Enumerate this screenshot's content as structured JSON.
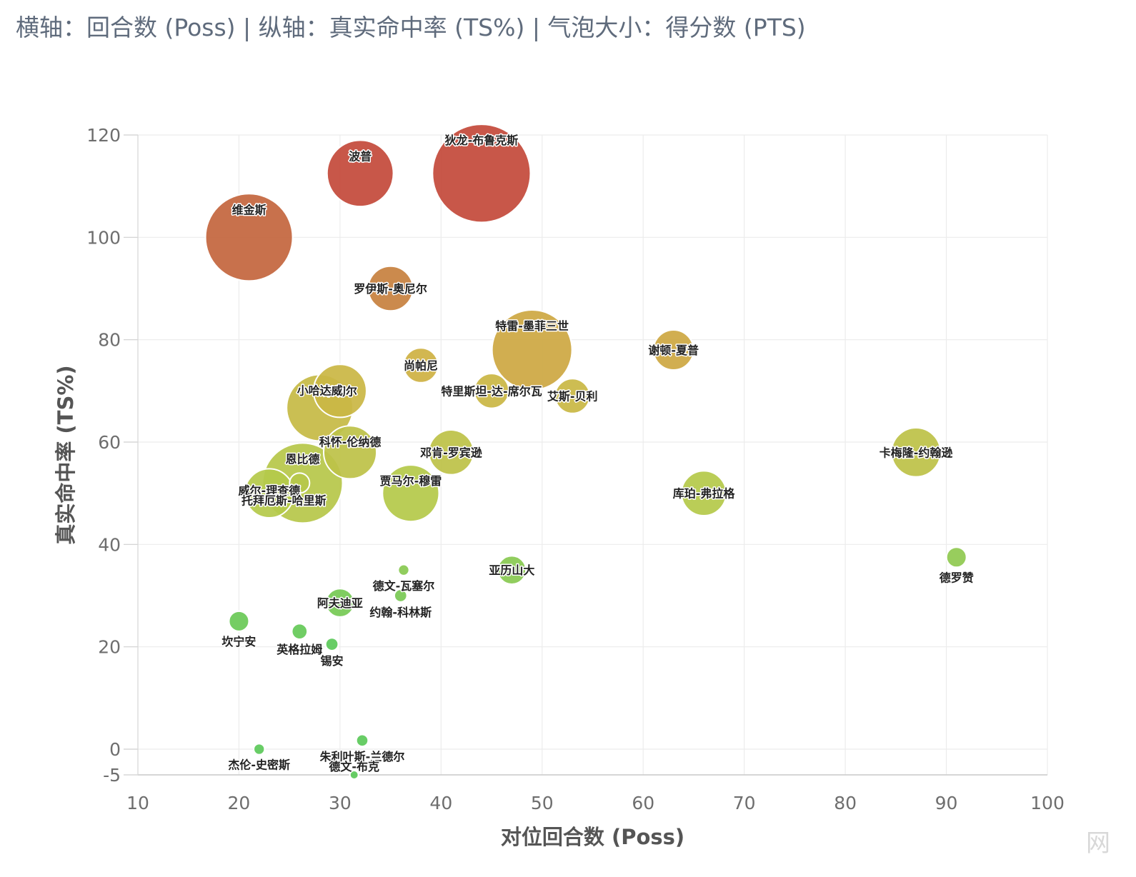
{
  "caption": "横轴：回合数 (Poss) | 纵轴：真实命中率 (TS%) | 气泡大小：得分数 (PTS)",
  "watermark": "网",
  "chart_data": {
    "type": "scatter",
    "subtype": "bubble",
    "xlabel": "对位回合数 (Poss)",
    "ylabel": "真实命中率 (TS%)",
    "xlim": [
      10,
      100
    ],
    "ylim": [
      -5,
      120
    ],
    "xticks": [
      10,
      20,
      30,
      40,
      50,
      60,
      70,
      80,
      90,
      100
    ],
    "yticks": [
      -5,
      0,
      20,
      40,
      60,
      80,
      100,
      120
    ],
    "grid": true,
    "size_encodes": "PTS",
    "color_scale": [
      "#5cc95a",
      "#b5c94a",
      "#cfb244",
      "#c4713f",
      "#c44a3b"
    ],
    "points": [
      {
        "name": "狄龙-布鲁克斯",
        "x": 44,
        "y": 112.5,
        "size": 24,
        "label_pos": "inside-top"
      },
      {
        "name": "波普",
        "x": 32,
        "y": 112.5,
        "size": 11,
        "label_pos": "inside-top"
      },
      {
        "name": "维金斯",
        "x": 21,
        "y": 100,
        "size": 19,
        "label_pos": "inside-top"
      },
      {
        "name": "罗伊斯-奥尼尔",
        "x": 35,
        "y": 90,
        "size": 5,
        "label_pos": "center"
      },
      {
        "name": "特雷-墨菲三世",
        "x": 49,
        "y": 78,
        "size": 16,
        "label_pos": "inside-top"
      },
      {
        "name": "谢顿-夏普",
        "x": 63,
        "y": 78,
        "size": 4,
        "label_pos": "center"
      },
      {
        "name": "尚帕尼",
        "x": 38,
        "y": 75,
        "size": 3,
        "label_pos": "center"
      },
      {
        "name": "米切尔",
        "x": 30,
        "y": 70,
        "size": 7,
        "label_pos": "center"
      },
      {
        "name": "特里斯坦-达-席尔瓦",
        "x": 45,
        "y": 70,
        "size": 3,
        "label_pos": "center"
      },
      {
        "name": "艾斯-贝利",
        "x": 53,
        "y": 69,
        "size": 3,
        "label_pos": "center"
      },
      {
        "name": "小哈达威",
        "x": 28,
        "y": 66.7,
        "size": 11,
        "label_pos": "inside-top"
      },
      {
        "name": "科怀-伦纳德",
        "x": 31,
        "y": 58,
        "size": 7,
        "label_pos": "inside-top"
      },
      {
        "name": "邓肯-罗宾逊",
        "x": 41,
        "y": 58,
        "size": 5,
        "label_pos": "center"
      },
      {
        "name": "卡梅隆-约翰逊",
        "x": 87,
        "y": 58,
        "size": 6,
        "label_pos": "center"
      },
      {
        "name": "恩比德",
        "x": 26.3,
        "y": 52,
        "size": 16,
        "label_pos": "inside-top"
      },
      {
        "name": "威尔-理查德",
        "x": 23,
        "y": 50,
        "size": 6,
        "label_pos": "center-upper"
      },
      {
        "name": "托拜厄斯-哈里斯",
        "x": 26,
        "y": 52,
        "size": 1,
        "label_pos": "below-offset"
      },
      {
        "name": "贾马尔-穆雷",
        "x": 37,
        "y": 50,
        "size": 8,
        "label_pos": "inside-top"
      },
      {
        "name": "库珀-弗拉格",
        "x": 66,
        "y": 50,
        "size": 5,
        "label_pos": "center"
      },
      {
        "name": "亚历山大",
        "x": 47,
        "y": 35,
        "size": 2,
        "label_pos": "center"
      },
      {
        "name": "德罗赞",
        "x": 91,
        "y": 37.5,
        "size": 1,
        "label_pos": "below"
      },
      {
        "name": "德文-瓦塞尔",
        "x": 36.3,
        "y": 35,
        "size": 0.3,
        "label_pos": "below"
      },
      {
        "name": "约翰-科林斯",
        "x": 36,
        "y": 30,
        "size": 0.4,
        "label_pos": "below"
      },
      {
        "name": "阿夫迪亚",
        "x": 30,
        "y": 28.6,
        "size": 2,
        "label_pos": "center"
      },
      {
        "name": "坎宁安",
        "x": 20,
        "y": 25,
        "size": 1,
        "label_pos": "below"
      },
      {
        "name": "英格拉姆",
        "x": 26,
        "y": 23,
        "size": 0.6,
        "label_pos": "below"
      },
      {
        "name": "锡安",
        "x": 29.2,
        "y": 20.5,
        "size": 0.4,
        "label_pos": "below"
      },
      {
        "name": "朱利叶斯-兰德尔",
        "x": 32.2,
        "y": 1.7,
        "size": 0.35,
        "label_pos": "below"
      },
      {
        "name": "杰伦-史密斯",
        "x": 22,
        "y": 0,
        "size": 0.3,
        "label_pos": "below"
      },
      {
        "name": "德文-布克",
        "x": 31.4,
        "y": -5,
        "size": 0.1,
        "label_pos": "above"
      }
    ]
  }
}
